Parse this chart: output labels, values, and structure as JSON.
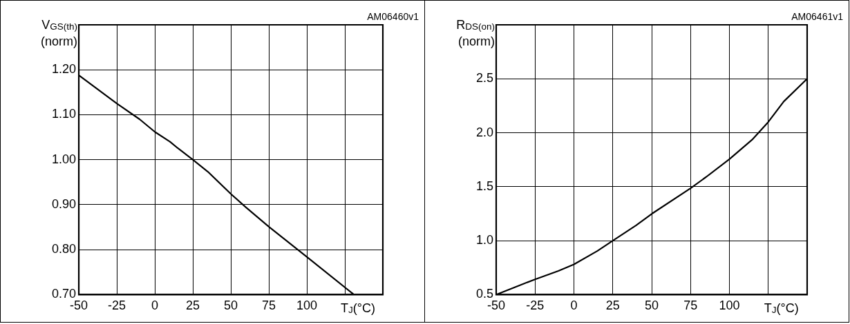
{
  "chart_data": [
    {
      "type": "line",
      "xlabel": "T$_{J}$(°C)",
      "ylabel": "V$_{GS(th)}$\n(norm)",
      "annotations": [
        "AM06460v1"
      ],
      "x": [
        -50,
        -25,
        -10,
        0,
        10,
        15,
        25,
        35,
        50,
        60,
        75,
        100,
        131
      ],
      "series": [
        {
          "color": "#000000",
          "values": [
            1.188,
            1.125,
            1.09,
            1.062,
            1.04,
            1.026,
            1.0,
            0.973,
            0.924,
            0.894,
            0.851,
            0.784,
            0.7
          ]
        }
      ],
      "xlim": [
        -50,
        150
      ],
      "xticks": [
        -50,
        -25,
        0,
        25,
        50,
        75,
        100,
        {
          "value": 125,
          "label": null
        }
      ],
      "ylim": [
        0.7,
        1.3
      ],
      "yticks": [
        {
          "value": 0.7,
          "label": "0.70"
        },
        {
          "value": 0.8,
          "label": "0.80"
        },
        {
          "value": 0.9,
          "label": "0.90"
        },
        {
          "value": 1.0,
          "label": "1.00"
        },
        {
          "value": 1.1,
          "label": "1.10"
        },
        {
          "value": 1.2,
          "label": "1.20"
        }
      ],
      "grid": true,
      "legend": false,
      "marker": "none",
      "line_style": "solid"
    },
    {
      "type": "line",
      "xlabel": "T$_{J}$(°C)",
      "ylabel": "R$_{DS(on)}$\n(norm)",
      "annotations": [
        "AM06461v1"
      ],
      "x": [
        -50,
        -35,
        -25,
        -10,
        0,
        15,
        25,
        40,
        50,
        75,
        85,
        100,
        115,
        125,
        135,
        150
      ],
      "series": [
        {
          "color": "#000000",
          "values": [
            0.5,
            0.586,
            0.642,
            0.72,
            0.78,
            0.904,
            1.0,
            1.142,
            1.248,
            1.485,
            1.59,
            1.755,
            1.941,
            2.1,
            2.29,
            2.5
          ]
        }
      ],
      "xlim": [
        -50,
        150
      ],
      "xticks": [
        -50,
        -25,
        0,
        25,
        50,
        75,
        100,
        {
          "value": 125,
          "label": null
        }
      ],
      "ylim": [
        0.5,
        3.0
      ],
      "yticks": [
        {
          "value": 0.5,
          "label": "0.5"
        },
        {
          "value": 1.0,
          "label": "1.0"
        },
        {
          "value": 1.5,
          "label": "1.5"
        },
        {
          "value": 2.0,
          "label": "2.0"
        },
        {
          "value": 2.5,
          "label": "2.5"
        }
      ],
      "grid": true,
      "legend": false,
      "marker": "none",
      "line_style": "solid"
    }
  ]
}
